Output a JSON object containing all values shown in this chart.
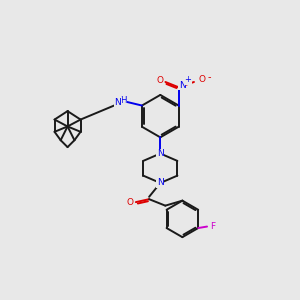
{
  "bg_color": "#e8e8e8",
  "bond_color": "#1a1a1a",
  "N_color": "#0000ee",
  "O_color": "#dd0000",
  "F_color": "#cc00cc",
  "NH_color": "#0000ee",
  "line_width": 1.4,
  "dbo": 0.055,
  "xlim": [
    0,
    10
  ],
  "ylim": [
    0,
    10
  ]
}
